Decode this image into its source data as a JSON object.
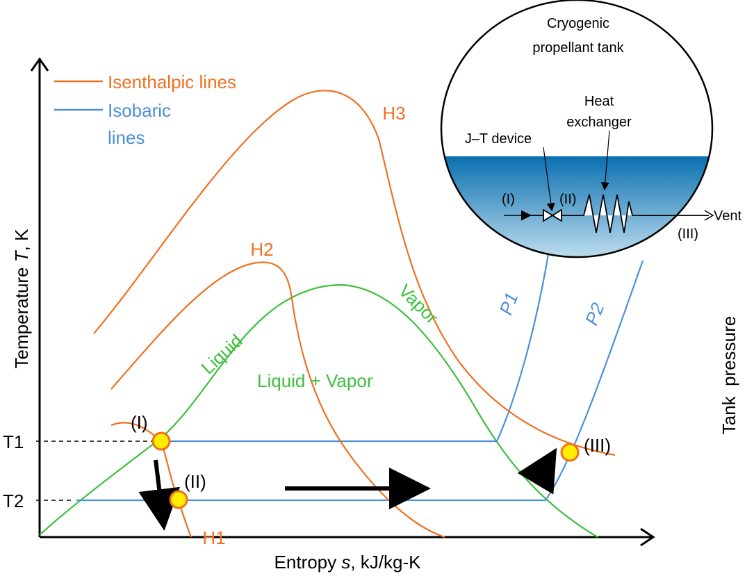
{
  "legend": {
    "isenthalpic": "Isenthalpic lines",
    "isobaric": [
      "Isobaric",
      "lines"
    ]
  },
  "axes": {
    "y_label": [
      "Temperature ",
      "T",
      ", K"
    ],
    "x_label": [
      "Entropy ",
      "s",
      ", kJ/kg-K"
    ],
    "ticks": [
      "T1",
      "T2"
    ]
  },
  "curves": {
    "H1": "H1",
    "H2": "H2",
    "H3": "H3",
    "P1": "P1",
    "P2": "P2",
    "liquid": "Liquid",
    "vapor": "Vapor",
    "two_phase": "Liquid + Vapor"
  },
  "points": [
    "(I)",
    "(II)",
    "(III)"
  ],
  "tank": {
    "title": [
      "Cryogenic",
      "propellant tank"
    ],
    "heat_exchanger": [
      "Heat",
      "exchanger"
    ],
    "jt_device": "J–T device",
    "stations": [
      "(I)",
      "(II)",
      "(III)"
    ],
    "vent": "Vent"
  },
  "side_label": "Tank  pressure"
}
